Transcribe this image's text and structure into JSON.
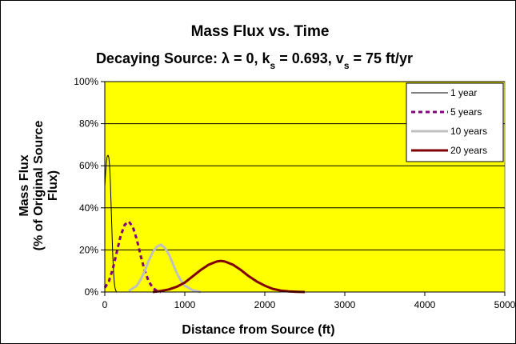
{
  "chart_data": {
    "type": "line",
    "title": "Mass Flux vs. Time",
    "subtitle_main": "Decaying Source: λ = 0, k",
    "subtitle_ks_sub": "s",
    "subtitle_ks_val": " = 0.693, v",
    "subtitle_vs_sub": "s",
    "subtitle_vs_val": " = 75 ft/yr",
    "xlabel": "Distance from Source (ft)",
    "ylabel_line1": "Mass Flux",
    "ylabel_line2": "(% of Original Source",
    "ylabel_line3": "Flux)",
    "xlim": [
      0,
      5000
    ],
    "ylim": [
      0,
      100
    ],
    "x_ticks": [
      "0",
      "1000",
      "2000",
      "3000",
      "4000",
      "5000"
    ],
    "y_ticks": [
      "0%",
      "20%",
      "40%",
      "60%",
      "80%",
      "100%"
    ],
    "grid": "horizontal",
    "plot_background": "#ffff00",
    "legend_position": "top-right",
    "series": [
      {
        "name": "1 year",
        "color": "#000000",
        "dash": "solid",
        "width": 1,
        "x": [
          0,
          10,
          20,
          30,
          40,
          50,
          60,
          70,
          80,
          90,
          100,
          110,
          120,
          130,
          140,
          150
        ],
        "y": [
          50,
          57,
          62,
          64.5,
          65,
          64,
          60,
          52,
          40,
          28,
          17,
          9,
          4,
          1.5,
          0.5,
          0
        ]
      },
      {
        "name": "5 years",
        "color": "#800080",
        "dash": "dashed",
        "width": 3,
        "x": [
          0,
          50,
          100,
          150,
          200,
          250,
          300,
          350,
          400,
          450,
          500,
          550,
          600,
          650,
          700
        ],
        "y": [
          2,
          5,
          11,
          19,
          27,
          32,
          33.5,
          31,
          25,
          17,
          10,
          5,
          2,
          0.5,
          0
        ]
      },
      {
        "name": "10 years",
        "color": "#c0c0c0",
        "dash": "solid",
        "width": 3,
        "x": [
          300,
          400,
          450,
          500,
          550,
          600,
          650,
          700,
          750,
          800,
          850,
          900,
          950,
          1000,
          1100,
          1200
        ],
        "y": [
          0.5,
          3,
          6,
          10,
          15,
          19,
          21.5,
          22.5,
          21,
          18,
          13.5,
          9,
          5.5,
          3,
          0.8,
          0
        ]
      },
      {
        "name": "20 years",
        "color": "#800000",
        "dash": "solid",
        "width": 3,
        "x": [
          600,
          700,
          800,
          900,
          1000,
          1100,
          1200,
          1300,
          1400,
          1450,
          1500,
          1600,
          1700,
          1800,
          1900,
          2000,
          2100,
          2200,
          2300,
          2400,
          2500
        ],
        "y": [
          0,
          0.5,
          1.2,
          2.5,
          4.5,
          7.5,
          10.5,
          13,
          14.5,
          14.8,
          14.5,
          13,
          10.5,
          7.5,
          5,
          3,
          1.5,
          0.7,
          0.3,
          0.1,
          0
        ]
      }
    ]
  }
}
